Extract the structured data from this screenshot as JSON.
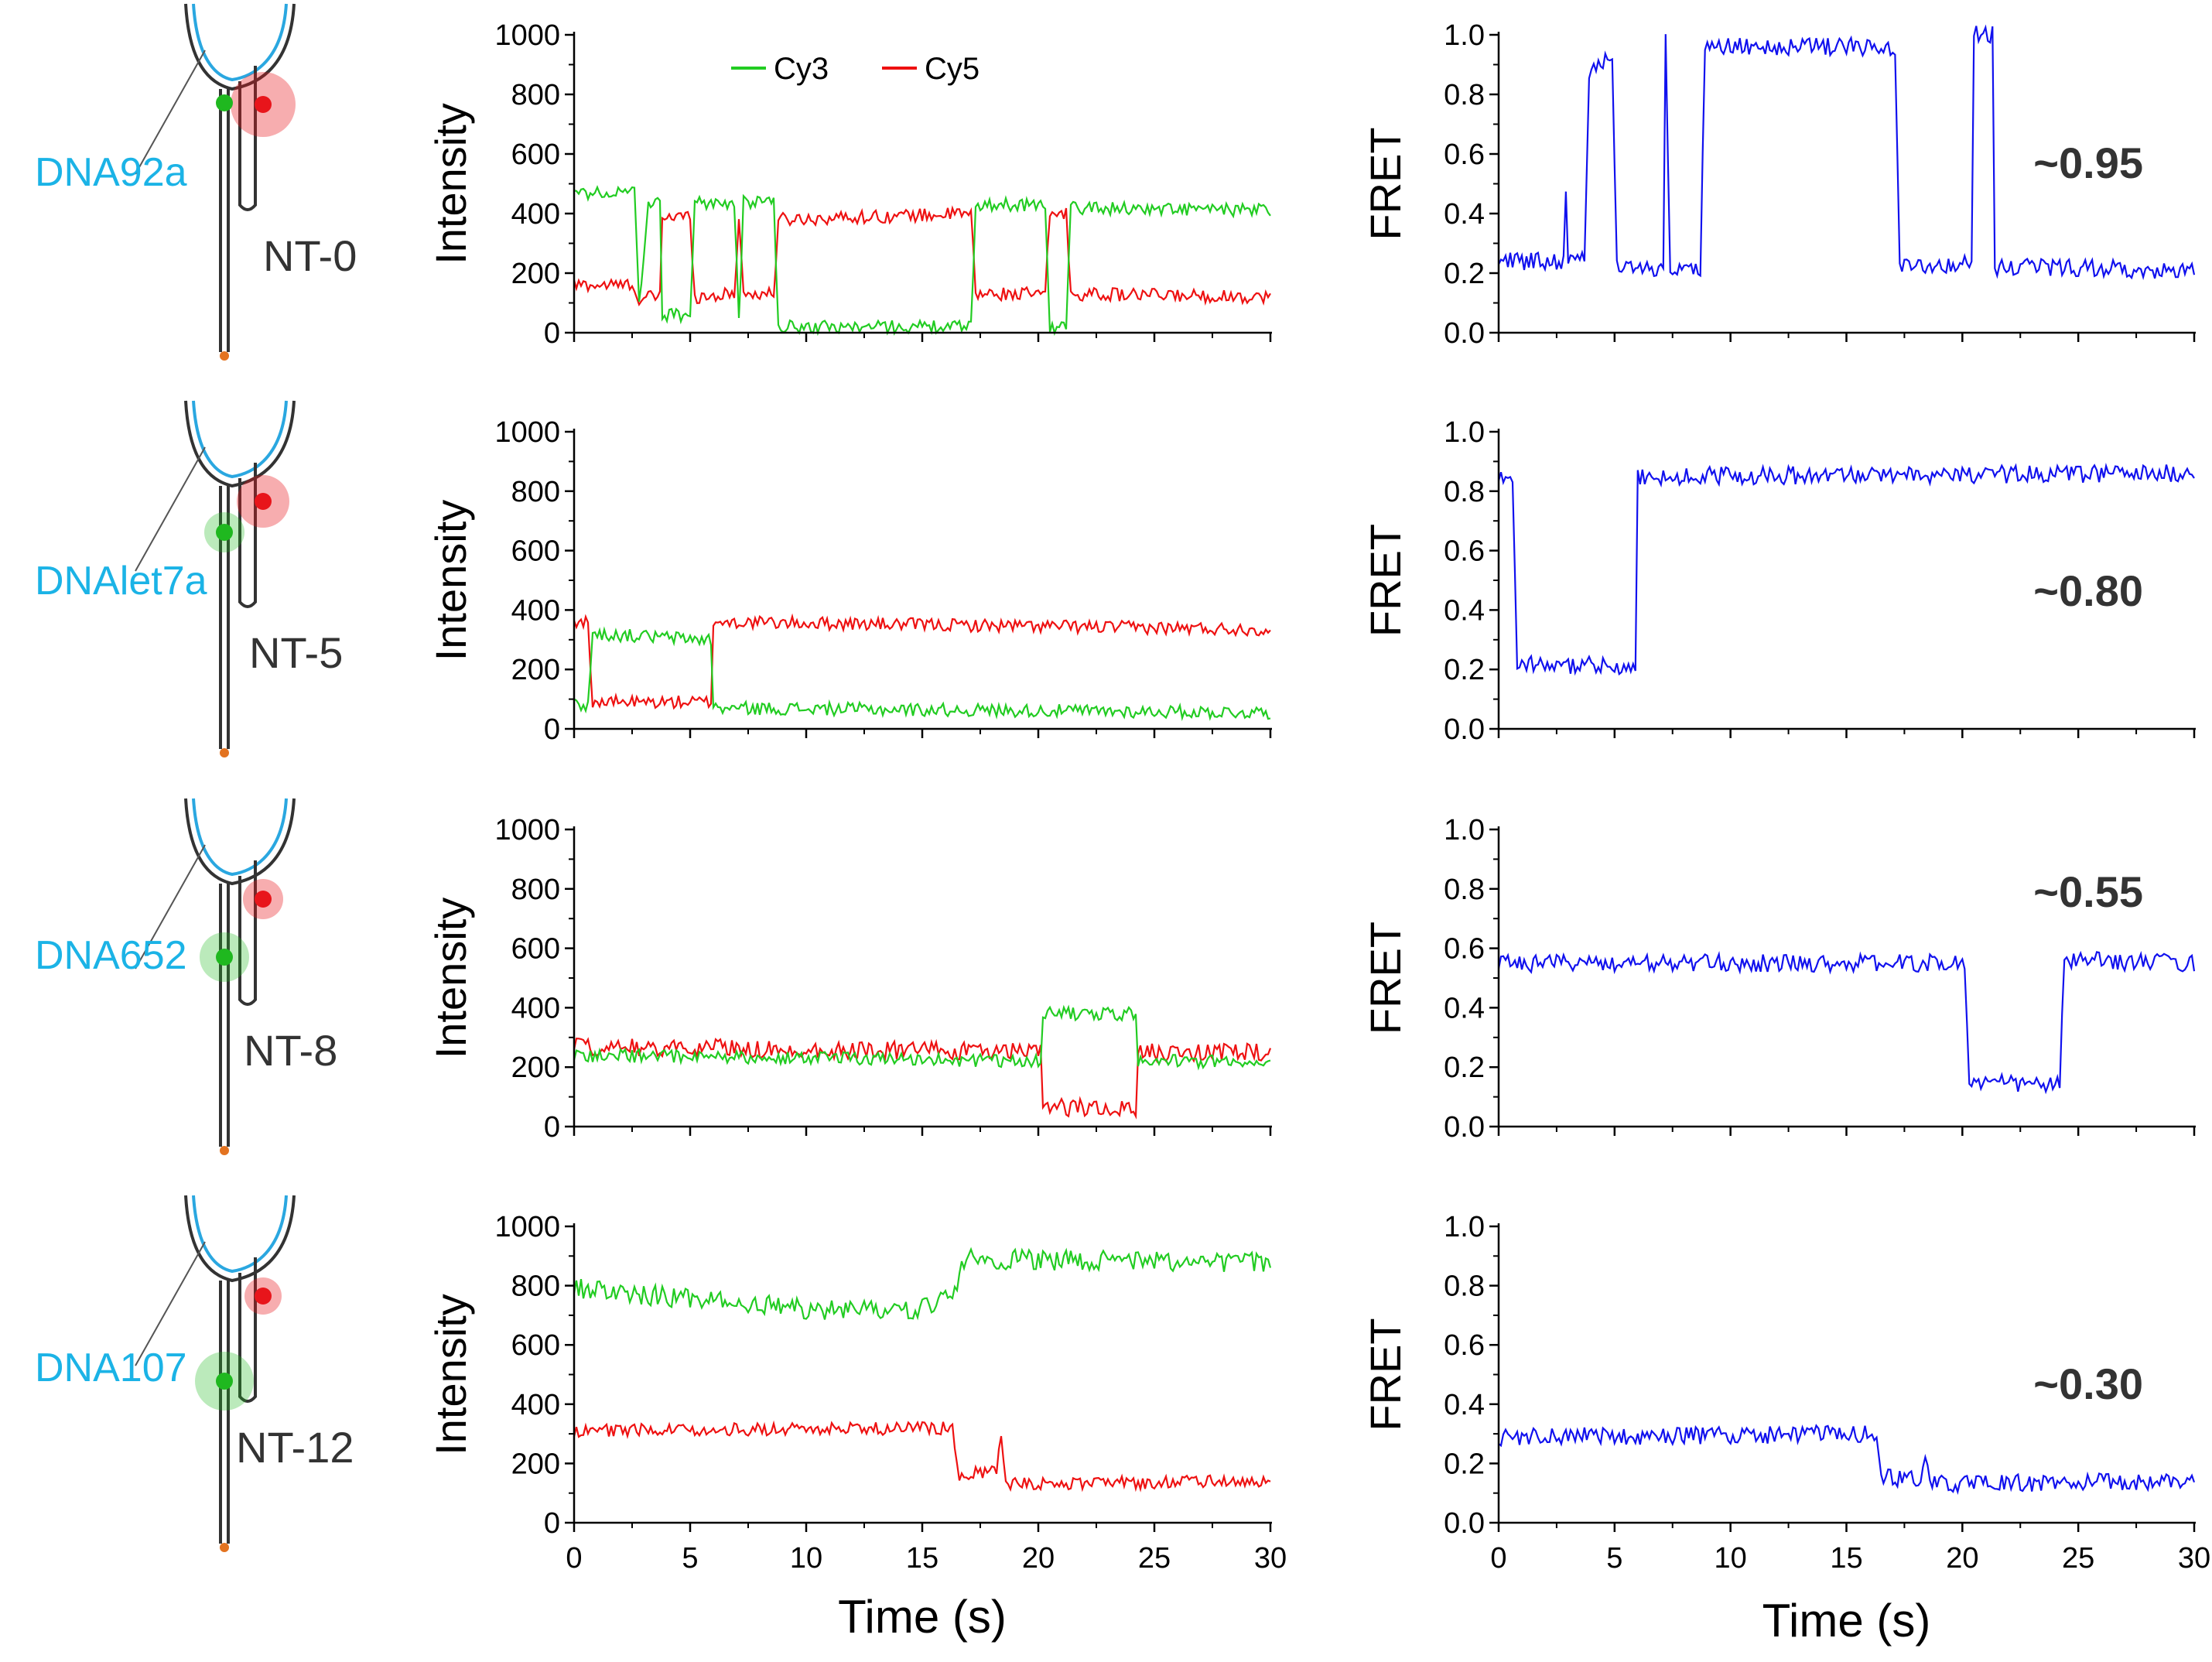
{
  "legend": {
    "cy3": "Cy3",
    "cy5": "Cy5"
  },
  "colors": {
    "cy3": "#22cc22",
    "cy5": "#ee1111",
    "fret": "#1111ee",
    "dna_label": "#1bb3e6",
    "strand_light": "#2aa7e0",
    "strand_dark": "#333333",
    "green_dye": "#1fb81f",
    "red_dye": "#e8151b",
    "anchor": "#e37320"
  },
  "axis_titles": {
    "intensity": "Intensity",
    "fret": "FRET",
    "time": "Time (s)"
  },
  "rows": [
    {
      "construct": "NT-0",
      "dna": "DNA92a",
      "fret_value": "~0.95",
      "cy3": [
        [
          0,
          470
        ],
        [
          2.6,
          470
        ],
        [
          2.8,
          90
        ],
        [
          3.2,
          440
        ],
        [
          3.7,
          430
        ],
        [
          3.8,
          60
        ],
        [
          5,
          60
        ],
        [
          5.2,
          440
        ],
        [
          6.9,
          430
        ],
        [
          7.1,
          30
        ],
        [
          7.3,
          440
        ],
        [
          8.6,
          440
        ],
        [
          8.8,
          20
        ],
        [
          17.1,
          20
        ],
        [
          17.3,
          430
        ],
        [
          20.3,
          430
        ],
        [
          20.5,
          20
        ],
        [
          21.2,
          20
        ],
        [
          21.4,
          420
        ],
        [
          30,
          410
        ]
      ],
      "cy5": [
        [
          0,
          160
        ],
        [
          2.6,
          160
        ],
        [
          2.8,
          100
        ],
        [
          3.2,
          120
        ],
        [
          3.7,
          120
        ],
        [
          3.8,
          390
        ],
        [
          5,
          390
        ],
        [
          5.2,
          120
        ],
        [
          6.9,
          130
        ],
        [
          7.1,
          390
        ],
        [
          7.3,
          130
        ],
        [
          8.6,
          130
        ],
        [
          8.8,
          380
        ],
        [
          17.1,
          400
        ],
        [
          17.3,
          130
        ],
        [
          20.3,
          130
        ],
        [
          20.5,
          400
        ],
        [
          21.2,
          400
        ],
        [
          21.4,
          130
        ],
        [
          30,
          120
        ]
      ],
      "fret": [
        [
          0,
          0.24
        ],
        [
          2.8,
          0.24
        ],
        [
          2.9,
          0.48
        ],
        [
          3.0,
          0.26
        ],
        [
          3.7,
          0.26
        ],
        [
          3.9,
          0.88
        ],
        [
          4.9,
          0.92
        ],
        [
          5.1,
          0.22
        ],
        [
          7.1,
          0.22
        ],
        [
          7.2,
          1.0
        ],
        [
          7.4,
          0.22
        ],
        [
          8.7,
          0.22
        ],
        [
          8.9,
          0.96
        ],
        [
          17.1,
          0.96
        ],
        [
          17.3,
          0.23
        ],
        [
          20.4,
          0.23
        ],
        [
          20.5,
          1.0
        ],
        [
          21.3,
          1.0
        ],
        [
          21.4,
          0.22
        ],
        [
          30,
          0.21
        ]
      ]
    },
    {
      "construct": "NT-5",
      "dna": "DNAlet7a",
      "fret_value": "~0.80",
      "cy3": [
        [
          0,
          80
        ],
        [
          0.6,
          80
        ],
        [
          0.8,
          320
        ],
        [
          5.9,
          300
        ],
        [
          6.0,
          70
        ],
        [
          30,
          55
        ]
      ],
      "cy5": [
        [
          0,
          360
        ],
        [
          0.6,
          360
        ],
        [
          0.8,
          90
        ],
        [
          5.9,
          90
        ],
        [
          6.0,
          360
        ],
        [
          30,
          335
        ]
      ],
      "fret": [
        [
          0,
          0.85
        ],
        [
          0.6,
          0.85
        ],
        [
          0.8,
          0.22
        ],
        [
          5.9,
          0.21
        ],
        [
          6.0,
          0.85
        ],
        [
          30,
          0.86
        ]
      ]
    },
    {
      "construct": "NT-8",
      "dna": "DNA652",
      "fret_value": "~0.55",
      "cy3": [
        [
          0,
          240
        ],
        [
          20.1,
          220
        ],
        [
          20.2,
          380
        ],
        [
          24.2,
          380
        ],
        [
          24.3,
          220
        ],
        [
          30,
          220
        ]
      ],
      "cy5": [
        [
          0,
          270
        ],
        [
          20.1,
          250
        ],
        [
          20.2,
          65
        ],
        [
          24.2,
          60
        ],
        [
          24.3,
          250
        ],
        [
          30,
          250
        ]
      ],
      "fret": [
        [
          0,
          0.55
        ],
        [
          20.1,
          0.55
        ],
        [
          20.3,
          0.15
        ],
        [
          24.2,
          0.14
        ],
        [
          24.4,
          0.56
        ],
        [
          30,
          0.55
        ]
      ]
    },
    {
      "construct": "NT-12",
      "dna": "DNA107",
      "fret_value": "~0.30",
      "cy3": [
        [
          0,
          790
        ],
        [
          10,
          720
        ],
        [
          15,
          720
        ],
        [
          16.5,
          800
        ],
        [
          16.7,
          890
        ],
        [
          30,
          880
        ]
      ],
      "cy5": [
        [
          0,
          310
        ],
        [
          16.3,
          320
        ],
        [
          16.6,
          160
        ],
        [
          18.2,
          180
        ],
        [
          18.4,
          280
        ],
        [
          18.6,
          130
        ],
        [
          30,
          140
        ]
      ],
      "fret": [
        [
          0,
          0.29
        ],
        [
          16.2,
          0.3
        ],
        [
          16.6,
          0.15
        ],
        [
          18.2,
          0.15
        ],
        [
          18.4,
          0.23
        ],
        [
          18.6,
          0.13
        ],
        [
          30,
          0.14
        ]
      ]
    }
  ],
  "chart_data": [
    {
      "type": "line",
      "title": "",
      "xlabel": "Time (s)",
      "ylabel": "Intensity",
      "x_ticks": [
        0,
        5,
        10,
        15,
        20,
        25,
        30
      ],
      "y_ticks": [
        0,
        200,
        400,
        600,
        800,
        1000
      ],
      "xlim": [
        0,
        30
      ],
      "ylim": [
        0,
        1000
      ],
      "series": [
        {
          "name": "Cy3"
        },
        {
          "name": "Cy5"
        }
      ]
    },
    {
      "type": "line",
      "title": "",
      "xlabel": "Time (s)",
      "ylabel": "FRET",
      "x_ticks": [
        0,
        5,
        10,
        15,
        20,
        25,
        30
      ],
      "y_ticks": [
        "0.0",
        "0.2",
        "0.4",
        "0.6",
        "0.8",
        "1.0"
      ],
      "xlim": [
        0,
        30
      ],
      "ylim": [
        0,
        1
      ],
      "series": [
        {
          "name": "FRET"
        }
      ]
    }
  ]
}
